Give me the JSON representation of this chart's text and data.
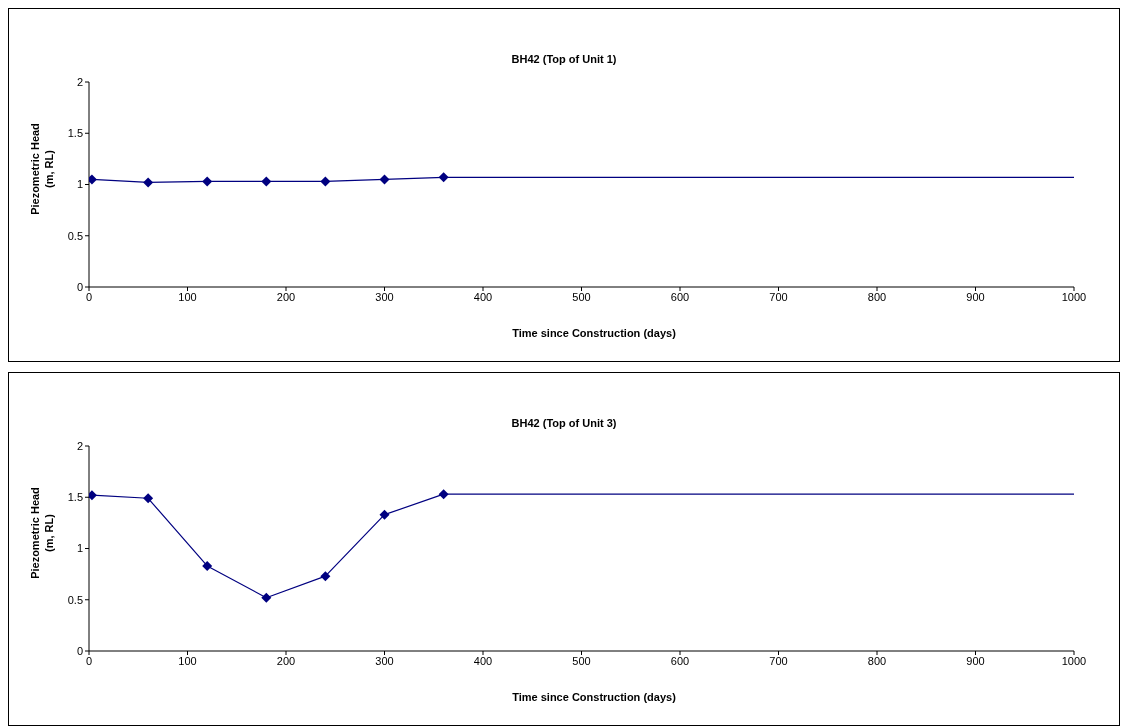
{
  "chart_data": [
    {
      "type": "line",
      "title": "BH42 (Top of Unit 1)",
      "xlabel": "Time since Construction (days)",
      "ylabel": "Piezometric Head (m, RL)",
      "xlim": [
        0,
        1000
      ],
      "xticks": [
        0,
        100,
        200,
        300,
        400,
        500,
        600,
        700,
        800,
        900,
        1000
      ],
      "ylim": [
        0,
        2
      ],
      "yticks": [
        0,
        0.5,
        1,
        1.5,
        2
      ],
      "grid": false,
      "line_style": "solid",
      "series": [
        {
          "color": "#000080",
          "marker": "diamond",
          "x": [
            3,
            60,
            120,
            180,
            240,
            300,
            360
          ],
          "values": [
            1.05,
            1.02,
            1.03,
            1.03,
            1.03,
            1.05,
            1.07
          ]
        },
        {
          "color": "#000080",
          "marker": "none",
          "x": [
            360,
            1000
          ],
          "values": [
            1.07,
            1.07
          ]
        }
      ]
    },
    {
      "type": "line",
      "title": "BH42 (Top of Unit 3)",
      "xlabel": "Time since Construction (days)",
      "ylabel": "Piezometric Head (m, RL)",
      "xlim": [
        0,
        1000
      ],
      "xticks": [
        0,
        100,
        200,
        300,
        400,
        500,
        600,
        700,
        800,
        900,
        1000
      ],
      "ylim": [
        0,
        2
      ],
      "yticks": [
        0,
        0.5,
        1,
        1.5,
        2
      ],
      "grid": false,
      "line_style": "solid",
      "series": [
        {
          "color": "#000080",
          "marker": "diamond",
          "x": [
            3,
            60,
            120,
            180,
            240,
            300,
            360
          ],
          "values": [
            1.52,
            1.49,
            0.83,
            0.52,
            0.73,
            1.33,
            1.53
          ]
        },
        {
          "color": "#000080",
          "marker": "none",
          "x": [
            360,
            1000
          ],
          "values": [
            1.53,
            1.53
          ]
        }
      ]
    }
  ]
}
